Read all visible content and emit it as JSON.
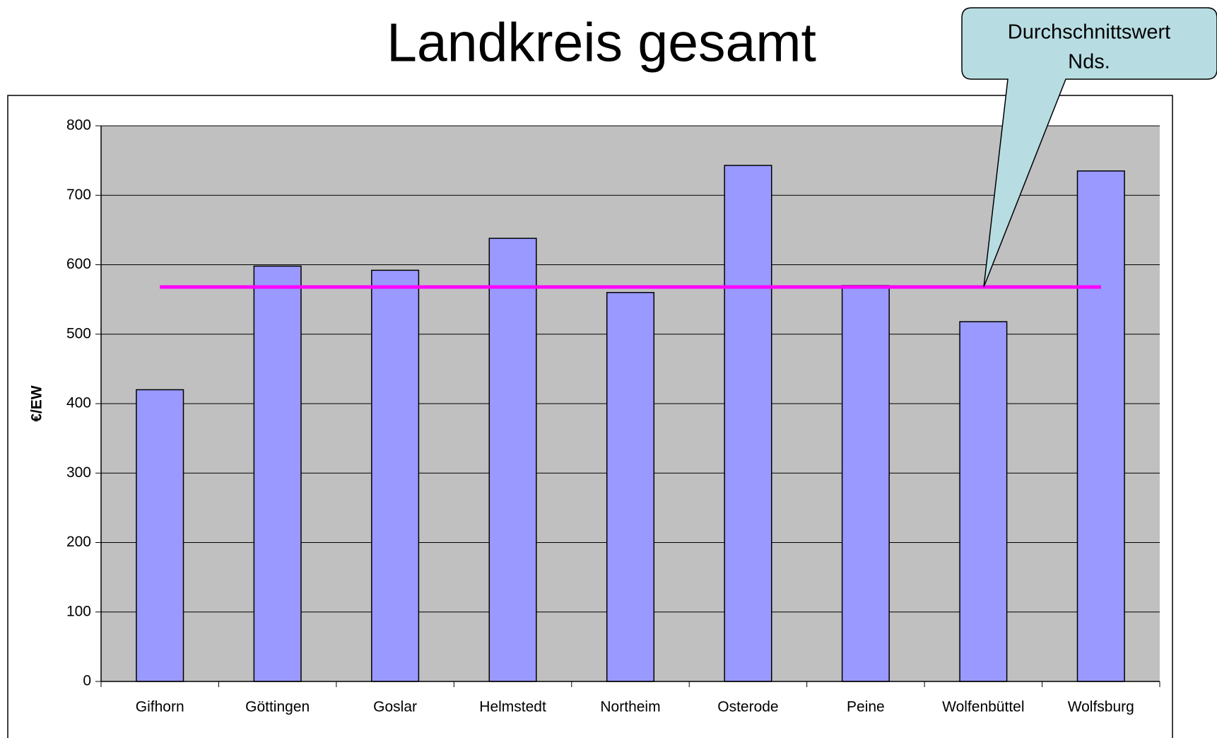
{
  "chart_data": {
    "type": "bar",
    "title": "Landkreis gesamt",
    "ylabel": "€/EW",
    "categories": [
      "Gifhorn",
      "Göttingen",
      "Goslar",
      "Helmstedt",
      "Northeim",
      "Osterode",
      "Peine",
      "Wolfenbüttel",
      "Wolfsburg"
    ],
    "values": [
      420,
      598,
      592,
      638,
      560,
      743,
      570,
      518,
      735
    ],
    "color": "#9999ff",
    "average": {
      "value": 568,
      "color": "#ff00ff"
    },
    "annotation": [
      "Durchschnittswert",
      "Nds."
    ],
    "ylim": [
      0,
      800
    ],
    "yticks": [
      0,
      100,
      200,
      300,
      400,
      500,
      600,
      700,
      800
    ],
    "grid": true,
    "plot_background": "#c0c0c0"
  }
}
